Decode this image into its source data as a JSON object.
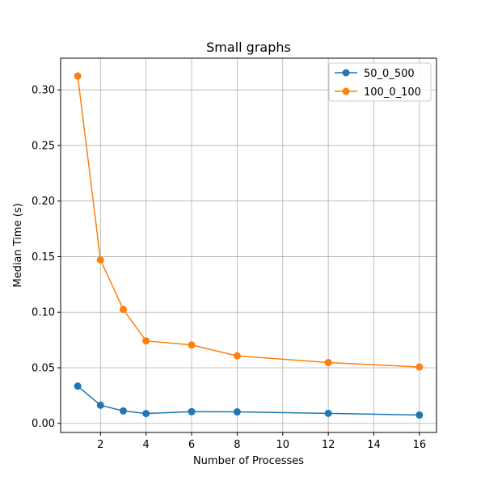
{
  "chart_data": {
    "type": "line",
    "title": "Small graphs",
    "xlabel": "Number of Processes",
    "ylabel": "Median Time (s)",
    "x": [
      1,
      2,
      3,
      4,
      6,
      8,
      12,
      16
    ],
    "xlim": [
      0.25,
      16.75
    ],
    "ylim": [
      -0.0082,
      0.3285
    ],
    "xticks": [
      2,
      4,
      6,
      8,
      10,
      12,
      14,
      16
    ],
    "xtick_labels": [
      "2",
      "4",
      "6",
      "8",
      "10",
      "12",
      "14",
      "16"
    ],
    "yticks": [
      0.0,
      0.05,
      0.1,
      0.15,
      0.2,
      0.25,
      0.3
    ],
    "ytick_labels": [
      "0.00",
      "0.05",
      "0.10",
      "0.15",
      "0.20",
      "0.25",
      "0.30"
    ],
    "grid": true,
    "legend_position": "top-right",
    "series": [
      {
        "name": "50_0_500",
        "color": "#1f77b4",
        "marker": "circle",
        "values": [
          0.0335,
          0.0163,
          0.0112,
          0.0088,
          0.0105,
          0.0103,
          0.009,
          0.0075
        ]
      },
      {
        "name": "100_0_100",
        "color": "#ff7f0e",
        "marker": "circle",
        "values": [
          0.3125,
          0.147,
          0.1025,
          0.0742,
          0.0705,
          0.0607,
          0.0547,
          0.0507
        ]
      }
    ]
  }
}
